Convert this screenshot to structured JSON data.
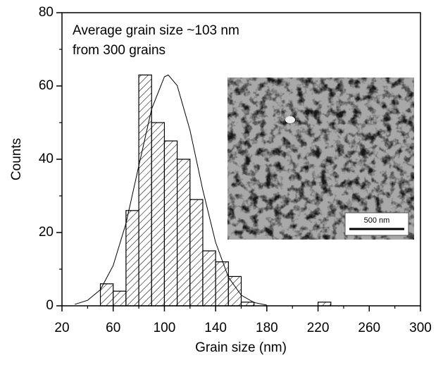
{
  "chart_data": {
    "type": "histogram",
    "x_label": "Grain size (nm)",
    "y_label": "Counts",
    "annotations": [
      "Average grain size ~103 nm",
      "from 300 grains"
    ],
    "bins": [
      50,
      60,
      70,
      80,
      90,
      100,
      110,
      120,
      130,
      140,
      150,
      160,
      170,
      180,
      190,
      200,
      210,
      220,
      230
    ],
    "counts": [
      6,
      4,
      26,
      63,
      50,
      45,
      40,
      29,
      15,
      12,
      8,
      1,
      0,
      0,
      0,
      0,
      0,
      1
    ],
    "hatch": "diagonal",
    "color": "#000000",
    "curve": {
      "x": [
        30,
        40,
        50,
        60,
        70,
        80,
        90,
        100,
        103,
        110,
        120,
        130,
        140,
        150,
        160,
        170,
        180
      ],
      "values": [
        0.4,
        1.5,
        4.4,
        11.0,
        22.5,
        38.2,
        53.7,
        62.5,
        63,
        60.1,
        47.9,
        31.6,
        17.3,
        7.8,
        2.9,
        0.9,
        0.2
      ]
    },
    "xlim": [
      20,
      300
    ],
    "xticks": [
      20,
      60,
      100,
      140,
      180,
      220,
      260,
      300
    ],
    "xticks_minor": [
      40,
      80,
      120,
      160,
      200,
      240,
      280
    ],
    "ylim": [
      0,
      80
    ],
    "yticks": [
      0,
      20,
      40,
      60,
      80
    ],
    "yticks_minor": [
      10,
      30,
      50,
      70
    ]
  },
  "inset": {
    "scale_bar_label": "500 nm"
  }
}
